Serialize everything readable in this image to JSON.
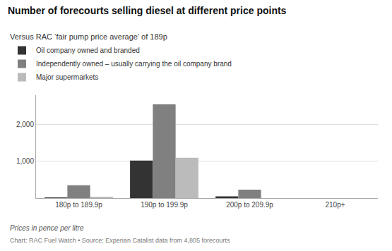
{
  "chart_data": {
    "type": "bar",
    "title": "Number of forecourts selling diesel at different price points",
    "subtitle": "Versus RAC ‘fair pump price average’ of 189p",
    "categories": [
      "180p to 189.9p",
      "190p to 199.9p",
      "200p to 209.9p",
      "210p+"
    ],
    "series": [
      {
        "name": "Oil company owned and branded",
        "color": "#333333",
        "values": [
          10,
          1020,
          50,
          0
        ]
      },
      {
        "name": "Independently owned – usually carrying the oil company brand",
        "color": "#808080",
        "values": [
          350,
          2550,
          230,
          0
        ]
      },
      {
        "name": "Major supermarkets",
        "color": "#bbbbbb",
        "values": [
          20,
          1100,
          0,
          0
        ]
      }
    ],
    "ylim": [
      0,
      2800
    ],
    "yticks": [
      {
        "value": 1000,
        "label": "1,000"
      },
      {
        "value": 2000,
        "label": "2,000"
      }
    ],
    "grid": true,
    "annotations": [
      "Prices in pence per litre",
      "Chart: RAC Fuel Watch • Source: Experian Catalist data from 4,805 forecourts"
    ]
  }
}
